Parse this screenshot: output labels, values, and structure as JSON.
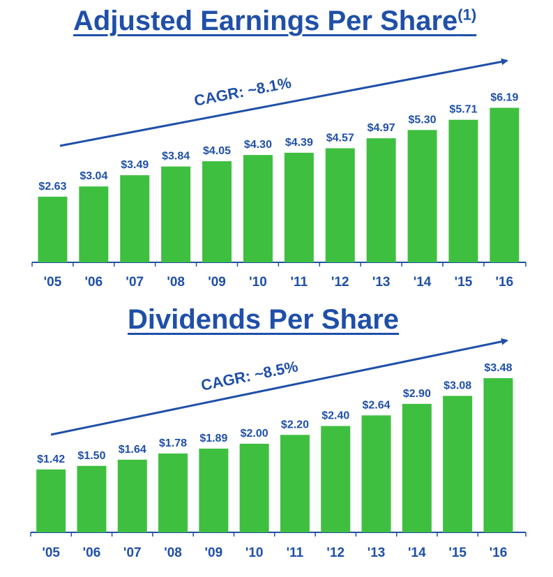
{
  "chart_data": [
    {
      "type": "bar",
      "title": "Adjusted Earnings Per Share",
      "title_footnote": "(1)",
      "categories": [
        "'05",
        "'06",
        "'07",
        "'08",
        "'09",
        "'10",
        "'11",
        "'12",
        "'13",
        "'14",
        "'15",
        "'16"
      ],
      "values": [
        2.63,
        3.04,
        3.49,
        3.84,
        4.05,
        4.3,
        4.39,
        4.57,
        4.97,
        5.3,
        5.71,
        6.19
      ],
      "value_labels": [
        "$2.63",
        "$3.04",
        "$3.49",
        "$3.84",
        "$4.05",
        "$4.30",
        "$4.39",
        "$4.57",
        "$4.97",
        "$5.30",
        "$5.71",
        "$6.19"
      ],
      "annotation": "CAGR: ~8.1%",
      "bar_color": "#3fbf3f",
      "text_color": "#1f4fa8",
      "grid": false
    },
    {
      "type": "bar",
      "title": "Dividends Per Share",
      "categories": [
        "'05",
        "'06",
        "'07",
        "'08",
        "'09",
        "'10",
        "'11",
        "'12",
        "'13",
        "'14",
        "'15",
        "'16"
      ],
      "values": [
        1.42,
        1.5,
        1.64,
        1.78,
        1.89,
        2.0,
        2.2,
        2.4,
        2.64,
        2.9,
        3.08,
        3.48
      ],
      "value_labels": [
        "$1.42",
        "$1.50",
        "$1.64",
        "$1.78",
        "$1.89",
        "$2.00",
        "$2.20",
        "$2.40",
        "$2.64",
        "$2.90",
        "$3.08",
        "$3.48"
      ],
      "annotation": "CAGR: ~8.5%",
      "bar_color": "#3fbf3f",
      "text_color": "#1f4fa8",
      "grid": false
    }
  ]
}
